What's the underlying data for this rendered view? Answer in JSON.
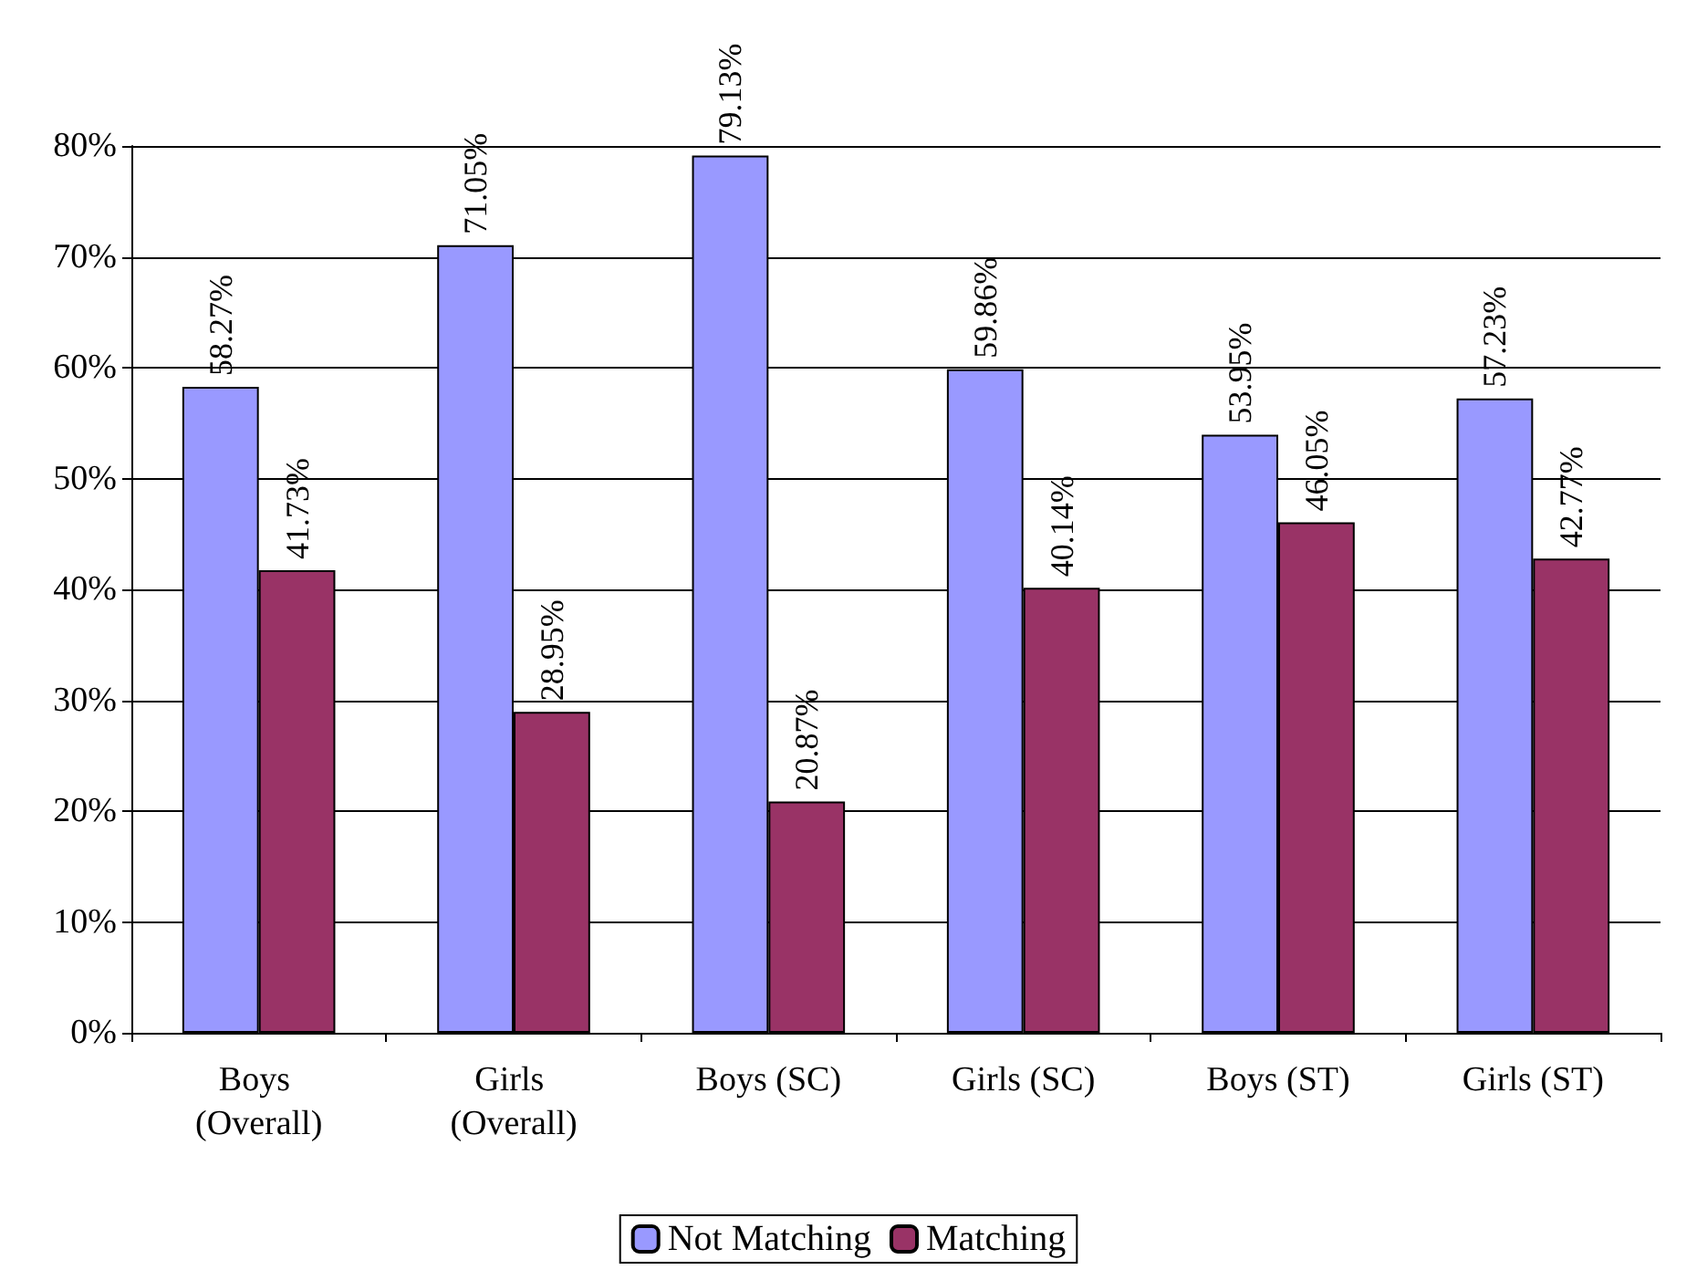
{
  "chart_data": {
    "type": "bar",
    "categories": [
      "Boys (Overall)",
      "Girls (Overall)",
      "Boys (SC)",
      "Girls (SC)",
      "Boys (ST)",
      "Girls (ST)"
    ],
    "series": [
      {
        "name": "Not Matching",
        "color": "#9999ff",
        "values": [
          58.27,
          71.05,
          79.13,
          59.86,
          53.95,
          57.23
        ],
        "value_labels": [
          "58.27%",
          "71.05%",
          "79.13%",
          "59.86%",
          "53.95%",
          "57.23%"
        ]
      },
      {
        "name": "Matching",
        "color": "#993366",
        "values": [
          41.73,
          28.95,
          20.87,
          40.14,
          46.05,
          42.77
        ],
        "value_labels": [
          "41.73%",
          "28.95%",
          "20.87%",
          "40.14%",
          "46.05%",
          "42.77%"
        ]
      }
    ],
    "ylim": [
      0,
      80
    ],
    "yticks": [
      {
        "value": 0,
        "label": "0%"
      },
      {
        "value": 10,
        "label": "10%"
      },
      {
        "value": 20,
        "label": "20%"
      },
      {
        "value": 30,
        "label": "30%"
      },
      {
        "value": 40,
        "label": "40%"
      },
      {
        "value": 50,
        "label": "50%"
      },
      {
        "value": 60,
        "label": "60%"
      },
      {
        "value": 70,
        "label": "70%"
      },
      {
        "value": 80,
        "label": "80%"
      }
    ],
    "grid": "y",
    "legend": "bottom"
  }
}
